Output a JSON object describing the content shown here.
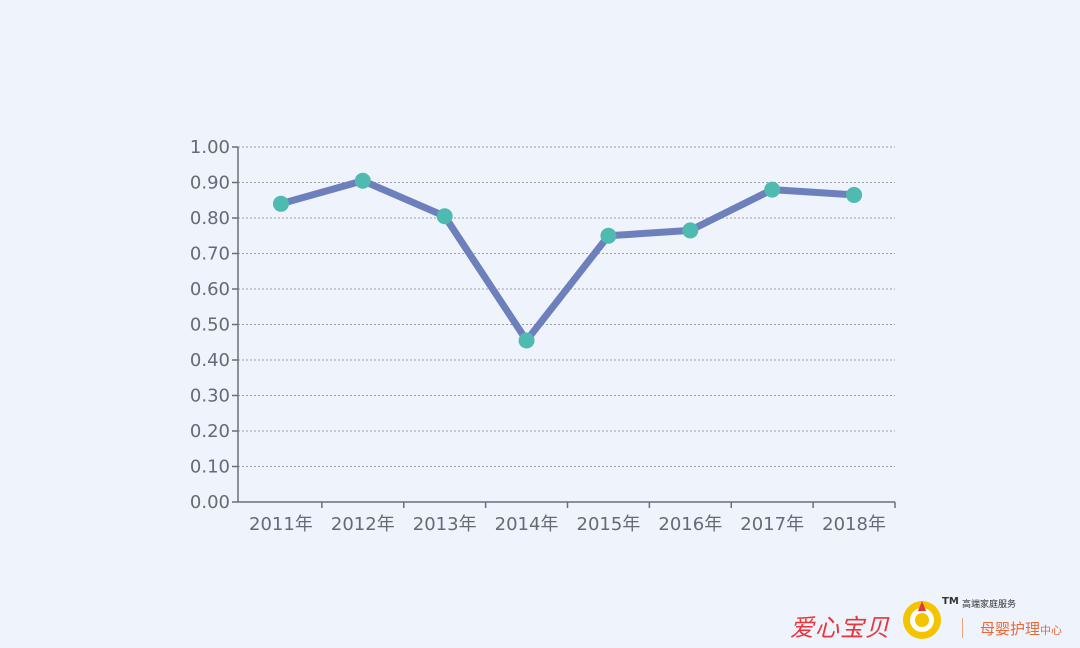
{
  "chart_data": {
    "type": "line",
    "categories": [
      "2011年",
      "2012年",
      "2013年",
      "2014年",
      "2015年",
      "2016年",
      "2017年",
      "2018年"
    ],
    "series": [
      {
        "values": [
          0.84,
          0.905,
          0.805,
          0.455,
          0.75,
          0.765,
          0.88,
          0.865
        ]
      }
    ],
    "title": "",
    "xlabel": "",
    "ylabel": "",
    "ylim": [
      0,
      1.0
    ],
    "yticks": [
      "0.00",
      "0.10",
      "0.20",
      "0.30",
      "0.40",
      "0.50",
      "0.60",
      "0.70",
      "0.80",
      "0.90",
      "1.00"
    ],
    "grid": "horizontal-dotted",
    "legend": "none",
    "colors": {
      "line": "#6d80bc",
      "marker": "#4fbab0",
      "grid": "#9a9ea6",
      "axis": "#6b6f78",
      "label": "#666a73"
    }
  },
  "brand": {
    "name": "爱心宝贝",
    "tm": "TM",
    "tagline": "高端家庭服务",
    "sub_main": "母婴护理",
    "sub_small": "中心",
    "logo_icon": "sun-ring-logo-icon",
    "colors": {
      "name": "#e8343b",
      "logo_outer": "#f5c400",
      "logo_inner": "#e8343b",
      "sub": "#e86a3a"
    }
  }
}
